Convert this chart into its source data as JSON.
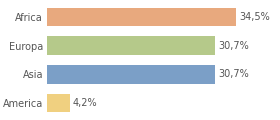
{
  "categories": [
    "America",
    "Asia",
    "Europa",
    "Africa"
  ],
  "values": [
    4.2,
    30.7,
    30.7,
    34.5
  ],
  "labels": [
    "4,2%",
    "30,7%",
    "30,7%",
    "34,5%"
  ],
  "bar_colors": [
    "#f0d080",
    "#7b9fc7",
    "#b5c98a",
    "#e8a97e"
  ],
  "background_color": "#ffffff",
  "xlim": [
    0,
    42
  ],
  "bar_height": 0.65,
  "label_fontsize": 7,
  "tick_fontsize": 7
}
